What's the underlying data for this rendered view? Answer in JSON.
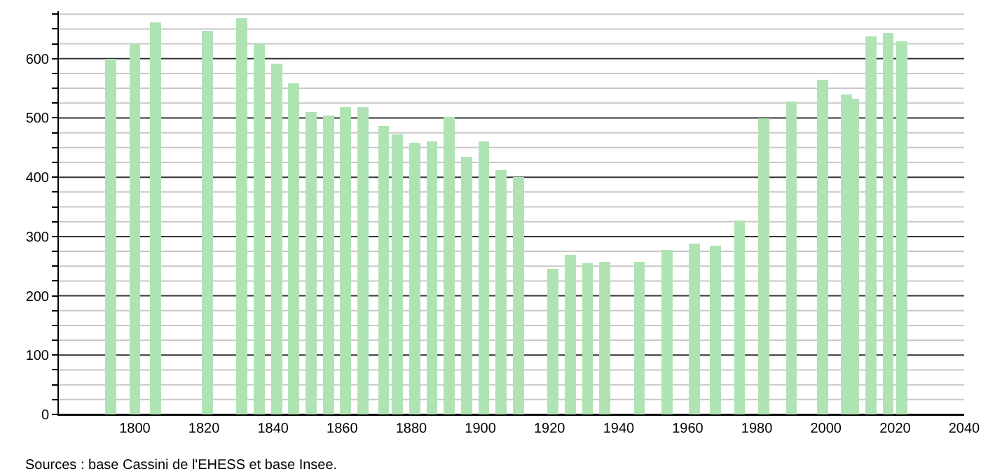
{
  "chart_data": {
    "type": "bar",
    "x": [
      1793,
      1800,
      1806,
      1821,
      1831,
      1836,
      1841,
      1846,
      1851,
      1856,
      1861,
      1866,
      1872,
      1876,
      1881,
      1886,
      1891,
      1896,
      1901,
      1906,
      1911,
      1921,
      1926,
      1931,
      1936,
      1946,
      1954,
      1962,
      1968,
      1975,
      1982,
      1990,
      1999,
      2006,
      2008,
      2013,
      2018,
      2022
    ],
    "series": [
      {
        "color": "#b0e3b4",
        "values": [
          600,
          626,
          661,
          647,
          668,
          626,
          591,
          558,
          510,
          504,
          518,
          518,
          486,
          472,
          458,
          460,
          502,
          435,
          460,
          412,
          400,
          246,
          269,
          255,
          257,
          257,
          278,
          288,
          285,
          327,
          499,
          528,
          564,
          540,
          533,
          638,
          643,
          629
        ]
      }
    ],
    "xlim": [
      1778,
      2040
    ],
    "xticks": [
      1800,
      1820,
      1840,
      1860,
      1880,
      1900,
      1920,
      1940,
      1960,
      1980,
      2000,
      2020,
      2040
    ],
    "ylim": [
      0,
      680
    ],
    "yticks": [
      0,
      {
        "value": 25,
        "label": null
      },
      {
        "value": 50,
        "label": null
      },
      {
        "value": 75,
        "label": null
      },
      100,
      {
        "value": 125,
        "label": null
      },
      {
        "value": 150,
        "label": null
      },
      {
        "value": 175,
        "label": null
      },
      200,
      {
        "value": 225,
        "label": null
      },
      {
        "value": 250,
        "label": null
      },
      {
        "value": 275,
        "label": null
      },
      300,
      {
        "value": 325,
        "label": null
      },
      {
        "value": 350,
        "label": null
      },
      {
        "value": 375,
        "label": null
      },
      400,
      {
        "value": 425,
        "label": null
      },
      {
        "value": 450,
        "label": null
      },
      {
        "value": 475,
        "label": null
      },
      500,
      {
        "value": 525,
        "label": null
      },
      {
        "value": 550,
        "label": null
      },
      {
        "value": 575,
        "label": null
      },
      600,
      {
        "value": 625,
        "label": null
      },
      {
        "value": 650,
        "label": null
      },
      {
        "value": 675,
        "label": null
      }
    ],
    "grid": "y",
    "annotations": [
      "Sources : base Cassini de l'EHESS et base Insee."
    ]
  }
}
